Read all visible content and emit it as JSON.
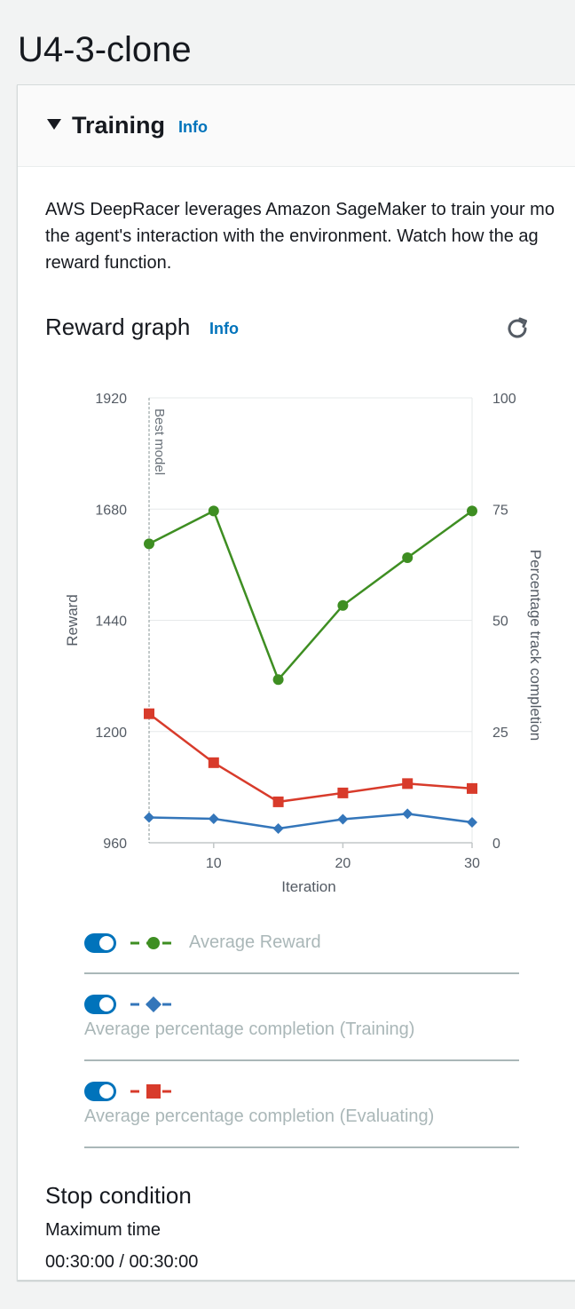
{
  "page": {
    "title": "U4-3-clone"
  },
  "training": {
    "title": "Training",
    "info": "Info",
    "description_lines": [
      "AWS DeepRacer leverages Amazon SageMaker to train your mo",
      "the agent's interaction with the environment. Watch how the ag",
      "reward function."
    ]
  },
  "reward_graph": {
    "title": "Reward graph",
    "info": "Info",
    "refresh_icon": "refresh-icon"
  },
  "chart_data": {
    "type": "line",
    "xlabel": "Iteration",
    "ylabel_left": "Reward",
    "ylabel_right": "Percentage track completion",
    "xlim": [
      5,
      30
    ],
    "ylim_left": [
      960,
      1920
    ],
    "ylim_right": [
      0,
      100
    ],
    "x_ticks": [
      10,
      20,
      30
    ],
    "y_ticks_left": [
      960,
      1200,
      1440,
      1680,
      1920
    ],
    "y_ticks_right": [
      0,
      25,
      50,
      75,
      100
    ],
    "grid": true,
    "annotation": {
      "label": "Best model",
      "x": 5
    },
    "x": [
      5,
      10,
      15,
      20,
      25,
      30
    ],
    "series": [
      {
        "name": "Average Reward",
        "axis": "left",
        "marker": "circle",
        "color": "#3e8e22",
        "values": [
          1605,
          1676,
          1312,
          1472,
          1575,
          1676
        ]
      },
      {
        "name": "Average percentage completion (Training)",
        "axis": "right",
        "marker": "diamond",
        "color": "#3476ba",
        "values": [
          5.7,
          5.4,
          3.2,
          5.3,
          6.5,
          4.6
        ]
      },
      {
        "name": "Average percentage completion (Evaluating)",
        "axis": "right",
        "marker": "square",
        "color": "#d83b2b",
        "values": [
          29,
          18,
          9.2,
          11.2,
          13.3,
          12.2
        ]
      }
    ]
  },
  "legend": [
    {
      "label": "Average Reward",
      "enabled": true
    },
    {
      "label": "Average percentage completion (Training)",
      "enabled": true
    },
    {
      "label": "Average percentage completion (Evaluating)",
      "enabled": true
    }
  ],
  "stop_condition": {
    "title": "Stop condition",
    "label": "Maximum time",
    "value": "00:30:00 / 00:30:00"
  }
}
